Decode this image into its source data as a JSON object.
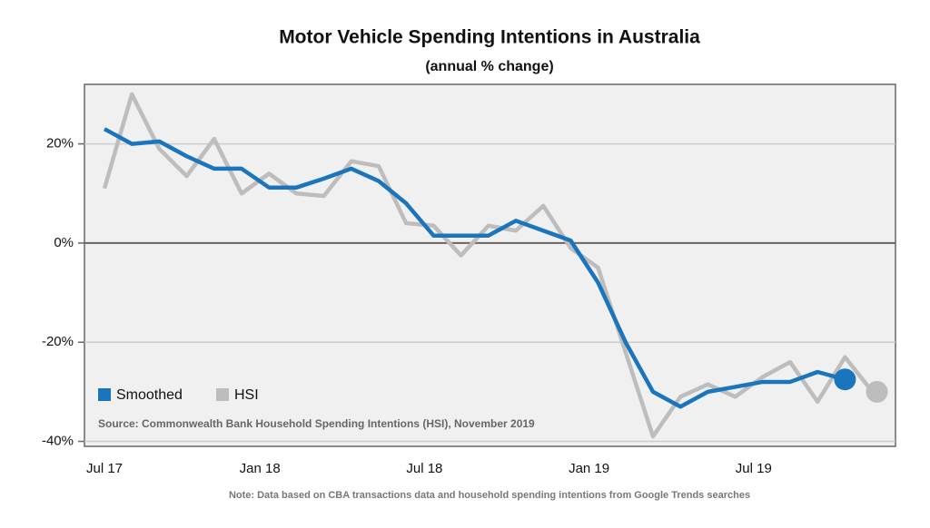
{
  "chart_data": {
    "type": "line",
    "title": "Motor Vehicle Spending Intentions in Australia",
    "subtitle": "(annual % change)",
    "categories": [
      "Jul 17",
      null,
      null,
      null,
      null,
      null,
      "Jan 18",
      null,
      null,
      null,
      null,
      null,
      "Jul 18",
      null,
      null,
      null,
      null,
      null,
      "Jan 19",
      null,
      null,
      null,
      null,
      null,
      "Jul 19",
      null,
      null,
      null,
      null
    ],
    "series": [
      {
        "name": "Smoothed",
        "color": "#1a75bc",
        "values": [
          23,
          20,
          20.5,
          17.5,
          15,
          15,
          11.2,
          11.2,
          13,
          15,
          12.5,
          8,
          1.5,
          1.5,
          1.5,
          4.5,
          2.5,
          0.5,
          -8,
          -20,
          -30,
          -33,
          -30,
          -29,
          -28,
          -28,
          -26,
          -27.5,
          null
        ]
      },
      {
        "name": "HSI",
        "color": "#bdbdbd",
        "values": [
          11,
          30,
          19,
          13.5,
          21,
          10,
          14,
          10,
          9.5,
          16.5,
          15.5,
          4,
          3.5,
          -2.5,
          3.5,
          2.5,
          7.5,
          -1,
          -5,
          -22,
          -39,
          -31,
          -28.5,
          -31,
          -27,
          -24,
          -32,
          -23,
          -30
        ]
      }
    ],
    "ylim": [
      -41,
      32
    ],
    "yticks": [
      {
        "value": 20,
        "label": "20%"
      },
      {
        "value": 0,
        "label": "0%"
      },
      {
        "value": -20,
        "label": "-20%"
      },
      {
        "value": -40,
        "label": "-40%"
      }
    ],
    "grid": true,
    "legend": "lower-left",
    "source": "Source: Commonwealth Bank Household Spending Intentions (HSI), November 2019",
    "note": "Note: Data based on CBA transactions data and household spending intentions from Google Trends searches"
  }
}
